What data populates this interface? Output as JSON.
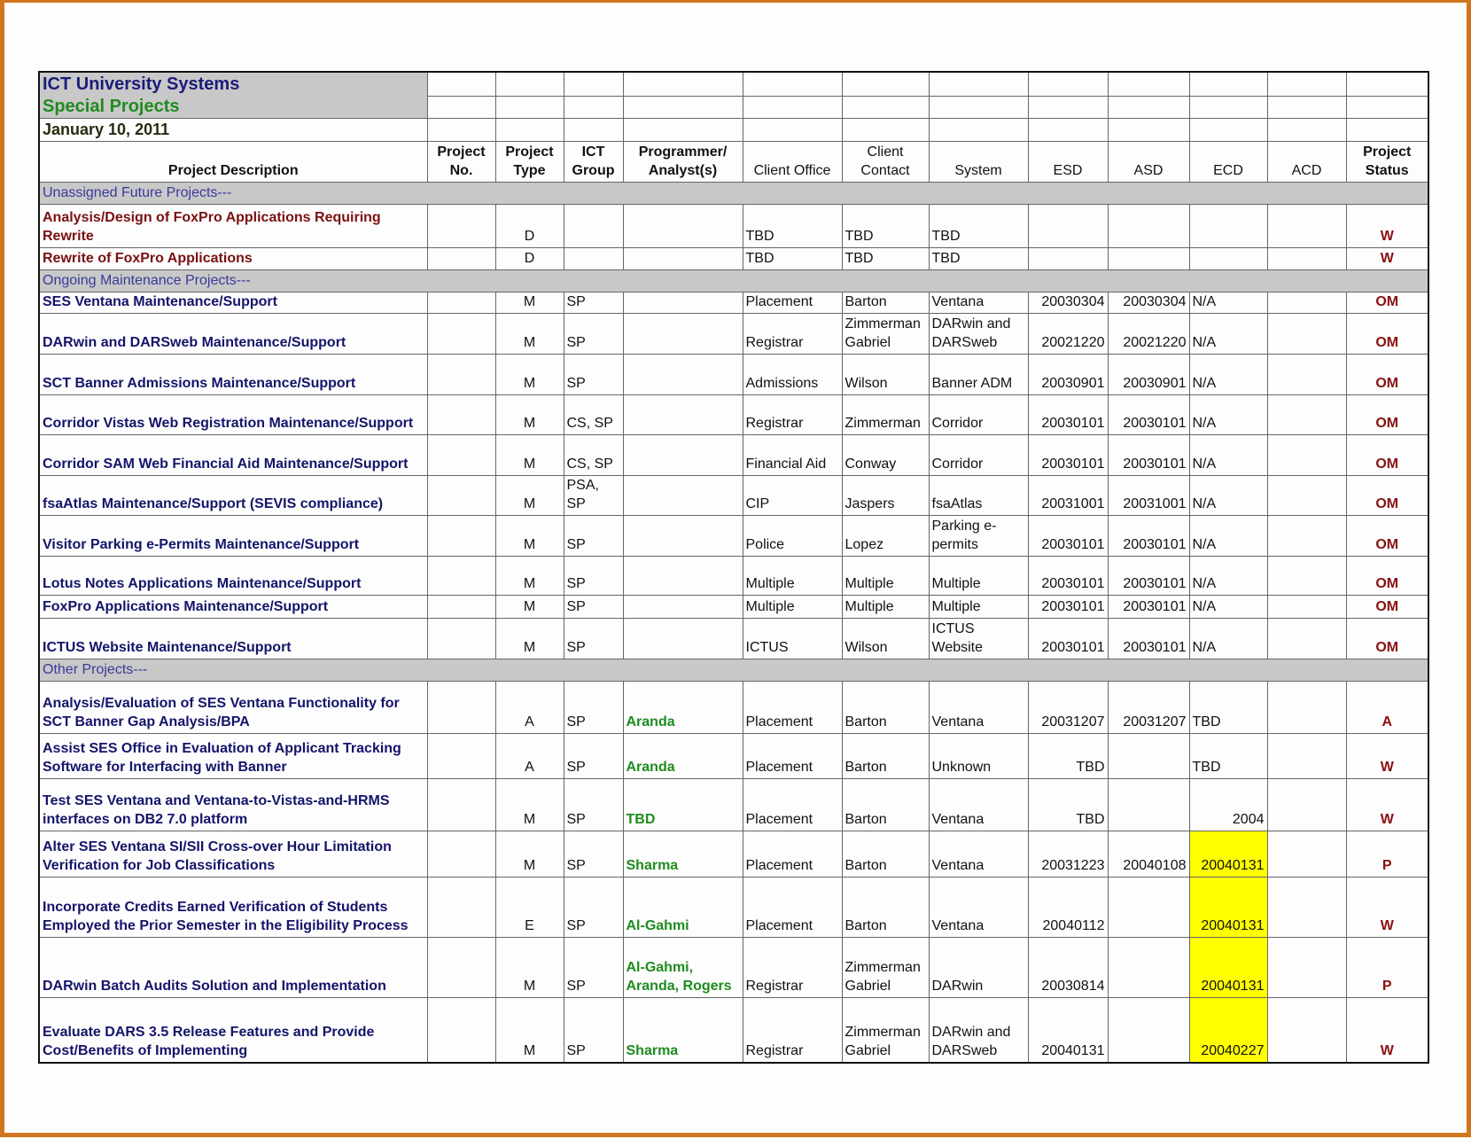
{
  "title": {
    "line1": "ICT University Systems",
    "line2": "Special Projects",
    "date": "January 10, 2011"
  },
  "columns": [
    {
      "line1": "",
      "line2": "Project Description",
      "color": "navy"
    },
    {
      "line1": "Project",
      "line2": "No.",
      "color": ""
    },
    {
      "line1": "Project",
      "line2": "Type",
      "color": "navy"
    },
    {
      "line1": "ICT",
      "line2": "Group",
      "color": ""
    },
    {
      "line1": "Programmer/",
      "line2": "Analyst(s)",
      "color": "green"
    },
    {
      "line1": "",
      "line2": "Client Office",
      "color": ""
    },
    {
      "line1": "Client",
      "line2": "Contact",
      "color": ""
    },
    {
      "line1": "",
      "line2": "System",
      "color": ""
    },
    {
      "line1": "",
      "line2": "ESD",
      "color": ""
    },
    {
      "line1": "",
      "line2": "ASD",
      "color": ""
    },
    {
      "line1": "",
      "line2": "ECD",
      "color": ""
    },
    {
      "line1": "",
      "line2": "ACD",
      "color": ""
    },
    {
      "line1": "Project",
      "line2": "Status",
      "color": "red"
    }
  ],
  "highlight_color": "#ffff00",
  "sections": [
    {
      "label": "Unassigned Future Projects---",
      "future": true,
      "rows": [
        {
          "desc": "Analysis/Design of FoxPro Applications Requiring Rewrite",
          "no": "",
          "type": "D",
          "group": "",
          "prog": "",
          "office": "TBD",
          "contact": "TBD",
          "system": "TBD",
          "esd": "",
          "asd": "",
          "ecd": "",
          "acd": "",
          "status": "W"
        },
        {
          "desc": "Rewrite of FoxPro Applications",
          "no": "",
          "type": "D",
          "group": "",
          "prog": "",
          "office": "TBD",
          "contact": "TBD",
          "system": "TBD",
          "esd": "",
          "asd": "",
          "ecd": "",
          "acd": "",
          "status": "W"
        }
      ]
    },
    {
      "label": "Ongoing Maintenance Projects---",
      "rows": [
        {
          "desc": "SES Ventana Maintenance/Support",
          "no": "",
          "type": "M",
          "group": "SP",
          "prog": "",
          "office": "Placement",
          "contact": "Barton",
          "system": "Ventana",
          "esd": "20030304",
          "asd": "20030304",
          "ecd": "N/A",
          "acd": "",
          "status": "OM"
        },
        {
          "desc": "DARwin and DARSweb Maintenance/Support",
          "no": "",
          "type": "M",
          "group": "SP",
          "prog": "",
          "office": "Registrar",
          "contact": "Zimmerman Gabriel",
          "system": "DARwin and DARSweb",
          "esd": "20021220",
          "asd": "20021220",
          "ecd": "N/A",
          "acd": "",
          "status": "OM"
        },
        {
          "desc": "SCT Banner Admissions Maintenance/Support",
          "no": "",
          "type": "M",
          "group": "SP",
          "prog": "",
          "office": "Admissions",
          "contact": "Wilson",
          "system": "Banner ADM",
          "esd": "20030901",
          "asd": "20030901",
          "ecd": "N/A",
          "acd": "",
          "status": "OM"
        },
        {
          "desc": "Corridor Vistas Web Registration Maintenance/Support",
          "no": "",
          "type": "M",
          "group": "CS, SP",
          "prog": "",
          "office": "Registrar",
          "contact": "Zimmerman",
          "system": "Corridor",
          "esd": "20030101",
          "asd": "20030101",
          "ecd": "N/A",
          "acd": "",
          "status": "OM"
        },
        {
          "desc": "Corridor SAM Web Financial Aid Maintenance/Support",
          "no": "",
          "type": "M",
          "group": "CS, SP",
          "prog": "",
          "office": "Financial Aid",
          "contact": "Conway",
          "system": "Corridor",
          "esd": "20030101",
          "asd": "20030101",
          "ecd": "N/A",
          "acd": "",
          "status": "OM"
        },
        {
          "desc": "fsaAtlas Maintenance/Support (SEVIS compliance)",
          "no": "",
          "type": "M",
          "group": "PSA, SP",
          "prog": "",
          "office": "CIP",
          "contact": "Jaspers",
          "system": "fsaAtlas",
          "esd": "20031001",
          "asd": "20031001",
          "ecd": "N/A",
          "acd": "",
          "status": "OM"
        },
        {
          "desc": "Visitor Parking e-Permits Maintenance/Support",
          "no": "",
          "type": "M",
          "group": "SP",
          "prog": "",
          "office": "Police",
          "contact": "Lopez",
          "system": "Parking e-permits",
          "esd": "20030101",
          "asd": "20030101",
          "ecd": "N/A",
          "acd": "",
          "status": "OM"
        },
        {
          "desc": "Lotus Notes Applications Maintenance/Support",
          "no": "",
          "type": "M",
          "group": "SP",
          "prog": "",
          "office": "Multiple",
          "contact": "Multiple",
          "system": "Multiple",
          "esd": "20030101",
          "asd": "20030101",
          "ecd": "N/A",
          "acd": "",
          "status": "OM"
        },
        {
          "desc": "FoxPro Applications Maintenance/Support",
          "no": "",
          "type": "M",
          "group": "SP",
          "prog": "",
          "office": "Multiple",
          "contact": "Multiple",
          "system": "Multiple",
          "esd": "20030101",
          "asd": "20030101",
          "ecd": "N/A",
          "acd": "",
          "status": "OM"
        },
        {
          "desc": "ICTUS Website Maintenance/Support",
          "no": "",
          "type": "M",
          "group": "SP",
          "prog": "",
          "office": "ICTUS",
          "contact": "Wilson",
          "system": "ICTUS Website",
          "esd": "20030101",
          "asd": "20030101",
          "ecd": "N/A",
          "acd": "",
          "status": "OM"
        }
      ]
    },
    {
      "label": "Other Projects---",
      "rows": [
        {
          "desc": "Analysis/Evaluation of SES Ventana Functionality for SCT Banner Gap Analysis/BPA",
          "no": "",
          "type": "A",
          "group": "SP",
          "prog": "Aranda",
          "office": "Placement",
          "contact": "Barton",
          "system": "Ventana",
          "esd": "20031207",
          "asd": "20031207",
          "ecd": "TBD",
          "acd": "",
          "status": "A"
        },
        {
          "desc": "Assist SES Office in Evaluation of Applicant Tracking Software for Interfacing with Banner",
          "no": "",
          "type": "A",
          "group": "SP",
          "prog": "Aranda",
          "office": "Placement",
          "contact": "Barton",
          "system": "Unknown",
          "esd": "TBD",
          "asd": "",
          "ecd": "TBD",
          "acd": "",
          "status": "W"
        },
        {
          "desc": "Test SES Ventana and Ventana-to-Vistas-and-HRMS interfaces on DB2 7.0 platform",
          "no": "",
          "type": "M",
          "group": "SP",
          "prog": "TBD",
          "office": "Placement",
          "contact": "Barton",
          "system": "Ventana",
          "esd": "TBD",
          "asd": "",
          "ecd": "2004",
          "acd": "",
          "status": "W"
        },
        {
          "desc": "Alter SES Ventana SI/SII Cross-over Hour Limitation Verification for Job Classifications",
          "no": "",
          "type": "M",
          "group": "SP",
          "prog": "Sharma",
          "office": "Placement",
          "contact": "Barton",
          "system": "Ventana",
          "esd": "20031223",
          "asd": "20040108",
          "ecd": "20040131",
          "acd": "",
          "status": "P",
          "hl": true
        },
        {
          "desc": "Incorporate Credits Earned Verification of Students Employed the Prior Semester in the Eligibility Process",
          "no": "",
          "type": "E",
          "group": "SP",
          "prog": "Al-Gahmi",
          "office": "Placement",
          "contact": "Barton",
          "system": "Ventana",
          "esd": "20040112",
          "asd": "",
          "ecd": "20040131",
          "acd": "",
          "status": "W",
          "hl": true
        },
        {
          "desc": "DARwin Batch Audits Solution and Implementation",
          "no": "",
          "type": "M",
          "group": "SP",
          "prog": "Al-Gahmi, Aranda, Rogers",
          "office": "Registrar",
          "contact": "Zimmerman Gabriel",
          "system": "DARwin",
          "esd": "20030814",
          "asd": "",
          "ecd": "20040131",
          "acd": "",
          "status": "P",
          "hl": true
        },
        {
          "desc": "Evaluate DARS 3.5 Release Features and Provide Cost/Benefits of Implementing",
          "no": "",
          "type": "M",
          "group": "SP",
          "prog": "Sharma",
          "office": "Registrar",
          "contact": "Zimmerman Gabriel",
          "system": "DARwin and DARSweb",
          "esd": "20040131",
          "asd": "",
          "ecd": "20040227",
          "acd": "",
          "status": "W",
          "hl": true
        }
      ]
    }
  ]
}
